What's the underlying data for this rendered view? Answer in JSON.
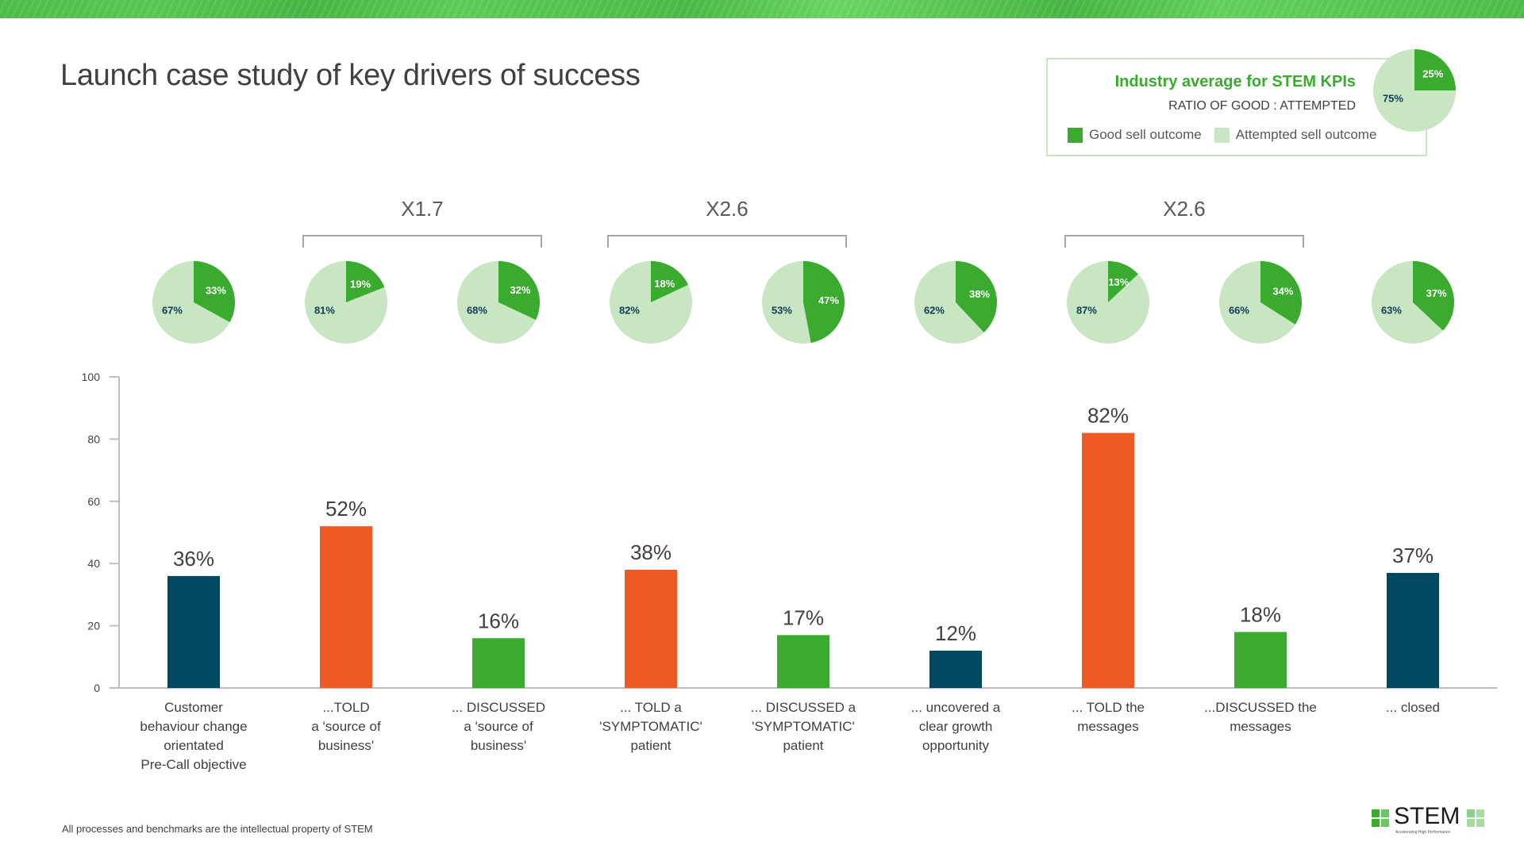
{
  "page": {
    "title": "Launch case study of key drivers of success",
    "footer": "All processes and benchmarks are the intellectual property of STEM",
    "logo": {
      "name": "STEM",
      "tagline": "Accelerating High Performance"
    }
  },
  "colors": {
    "good": "#3aab2e",
    "attempted": "#c9e6c3",
    "navy": "#00485f",
    "orange": "#ee5a24",
    "green": "#3aab2e",
    "pie_label_dark": "#0f3b57",
    "axis": "#bfbfbf"
  },
  "industry_legend": {
    "title": "Industry average for STEM KPIs",
    "subtitle": "RATIO OF GOOD : ATTEMPTED",
    "good_label": "Good sell outcome",
    "attempted_label": "Attempted sell outcome",
    "pie": {
      "good": 25,
      "attempted": 75,
      "good_label": "25%",
      "attempted_label": "75%"
    }
  },
  "multipliers": [
    {
      "label": "X1.7",
      "from_index": 1,
      "to_index": 2
    },
    {
      "label": "X2.6",
      "from_index": 3,
      "to_index": 4
    },
    {
      "label": "X2.6",
      "from_index": 6,
      "to_index": 7
    }
  ],
  "chart_data": {
    "type": "bar",
    "title": "Launch case study of key drivers of success",
    "xlabel": "",
    "ylabel": "",
    "ylim": [
      0,
      100
    ],
    "yticks": [
      0,
      20,
      40,
      60,
      80,
      100
    ],
    "grid": false,
    "categories": [
      "Customer behaviour change orientated Pre-Call objective",
      "...TOLD a 'source of business'",
      "... DISCUSSED a 'source of business'",
      "... TOLD a 'SYMPTOMATIC' patient",
      "... DISCUSSED a 'SYMPTOMATIC' patient",
      "... uncovered a clear growth opportunity",
      "... TOLD the messages",
      "...DISCUSSED the messages",
      "... closed"
    ],
    "category_lines": [
      [
        "Customer",
        "behaviour change",
        "orientated",
        "Pre-Call objective"
      ],
      [
        "...TOLD",
        "a 'source of",
        "business'"
      ],
      [
        "... DISCUSSED",
        "a 'source of",
        "business'"
      ],
      [
        "... TOLD a",
        "'SYMPTOMATIC'",
        "patient"
      ],
      [
        "... DISCUSSED a",
        "'SYMPTOMATIC'",
        "patient"
      ],
      [
        "... uncovered a",
        "clear growth",
        "opportunity"
      ],
      [
        "... TOLD the",
        "messages"
      ],
      [
        "...DISCUSSED the",
        "messages"
      ],
      [
        "... closed"
      ]
    ],
    "values": [
      36,
      52,
      16,
      38,
      17,
      12,
      82,
      18,
      37
    ],
    "value_labels": [
      "36%",
      "52%",
      "16%",
      "38%",
      "17%",
      "12%",
      "82%",
      "18%",
      "37%"
    ],
    "bar_colors": [
      "navy",
      "orange",
      "green",
      "orange",
      "green",
      "navy",
      "orange",
      "green",
      "navy"
    ],
    "pies": [
      {
        "good": 33,
        "attempted": 67
      },
      {
        "good": 19,
        "attempted": 81
      },
      {
        "good": 32,
        "attempted": 68
      },
      {
        "good": 18,
        "attempted": 82
      },
      {
        "good": 47,
        "attempted": 53
      },
      {
        "good": 38,
        "attempted": 62
      },
      {
        "good": 13,
        "attempted": 87
      },
      {
        "good": 34,
        "attempted": 66
      },
      {
        "good": 37,
        "attempted": 63
      }
    ],
    "legend": [
      "Good sell outcome",
      "Attempted sell outcome"
    ],
    "legend_position": "top-right"
  }
}
